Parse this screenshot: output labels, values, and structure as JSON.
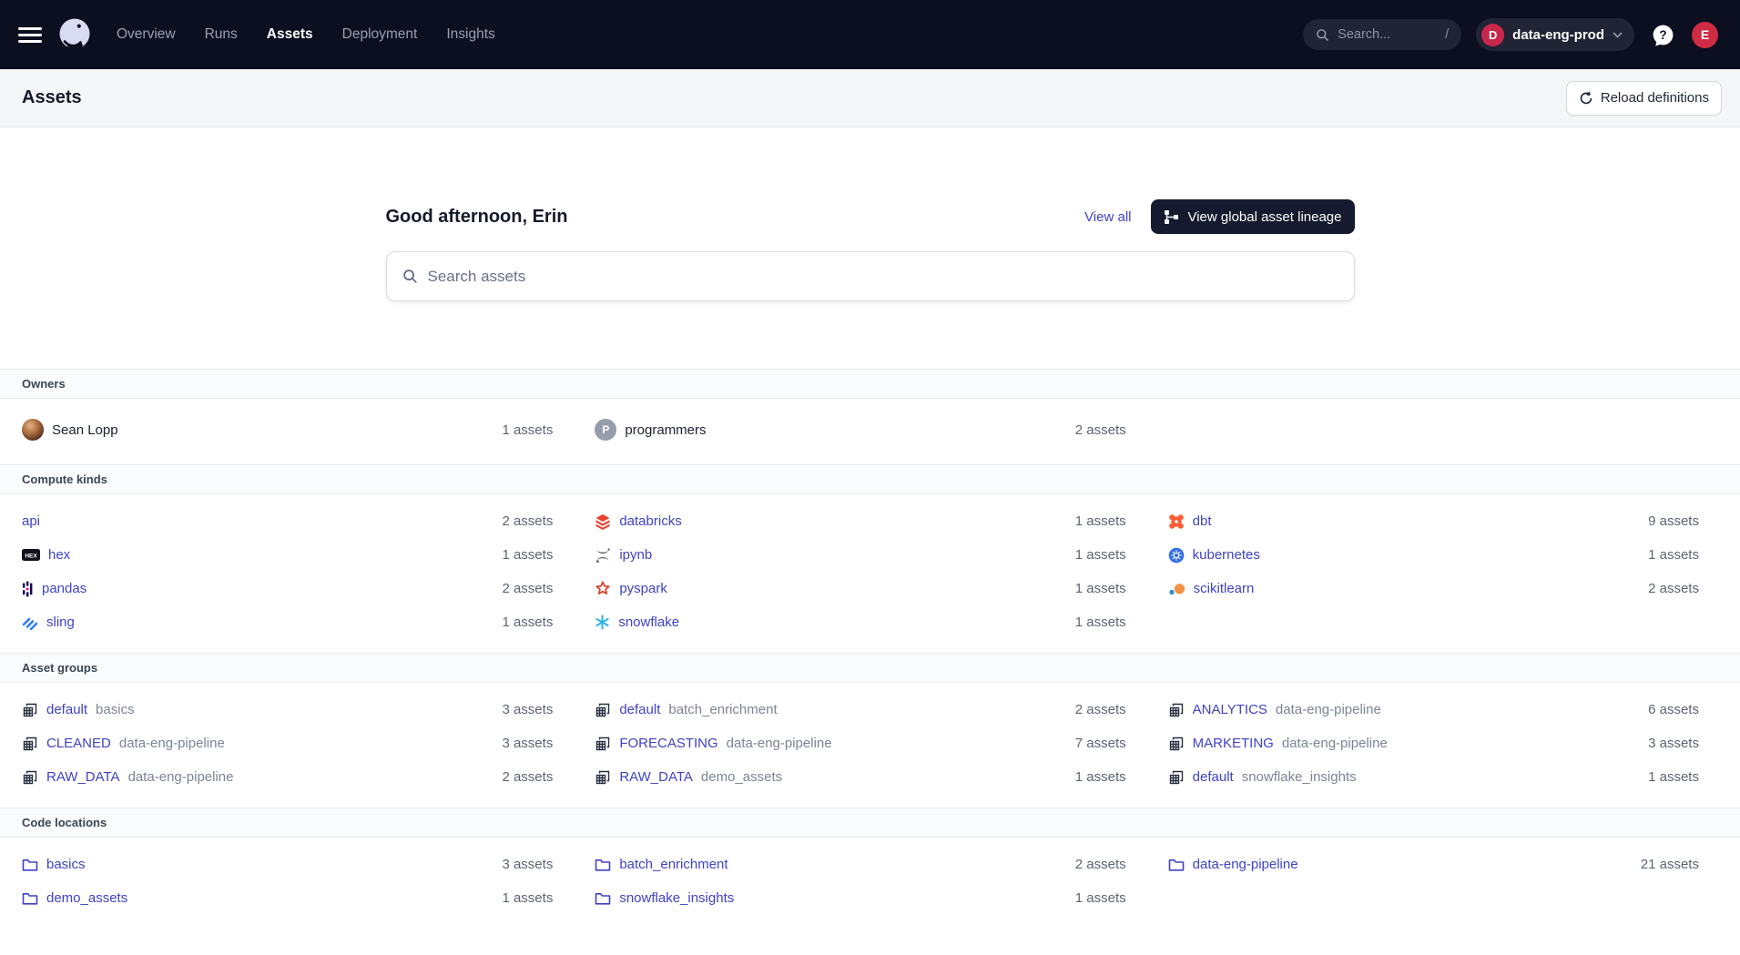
{
  "colors": {
    "nav_bg": "#0c0f20",
    "accent_link": "#3f42c6",
    "badge_red": "#c9274a",
    "avatar_red": "#d02b44",
    "button_dark": "#151a2e",
    "header_bg": "#f5f6f8",
    "band_bg": "#fafbfc"
  },
  "nav": {
    "items": [
      {
        "label": "Overview",
        "active": false
      },
      {
        "label": "Runs",
        "active": false
      },
      {
        "label": "Assets",
        "active": true
      },
      {
        "label": "Deployment",
        "active": false
      },
      {
        "label": "Insights",
        "active": false
      }
    ],
    "search": {
      "placeholder": "Search...",
      "shortcut": "/"
    },
    "deployment": {
      "initial": "D",
      "name": "data-eng-prod"
    },
    "user_initial": "E"
  },
  "page_header": {
    "title": "Assets",
    "reload_button": "Reload definitions"
  },
  "hero": {
    "greeting": "Good afternoon, Erin",
    "view_all": "View all",
    "lineage_button": "View global asset lineage",
    "search_placeholder": "Search assets"
  },
  "sections": [
    {
      "title": "Owners",
      "type": "owners",
      "items": [
        {
          "label": "Sean Lopp",
          "count": "1 assets",
          "avatar": "photo"
        },
        {
          "label": "programmers",
          "count": "2 assets",
          "avatar": "P"
        }
      ]
    },
    {
      "title": "Compute kinds",
      "type": "kinds",
      "items": [
        {
          "label": "api",
          "count": "2 assets",
          "icon": "none"
        },
        {
          "label": "databricks",
          "count": "1 assets",
          "icon": "databricks"
        },
        {
          "label": "dbt",
          "count": "9 assets",
          "icon": "dbt"
        },
        {
          "label": "hex",
          "count": "1 assets",
          "icon": "hex"
        },
        {
          "label": "ipynb",
          "count": "1 assets",
          "icon": "ipynb"
        },
        {
          "label": "kubernetes",
          "count": "1 assets",
          "icon": "kubernetes"
        },
        {
          "label": "pandas",
          "count": "2 assets",
          "icon": "pandas"
        },
        {
          "label": "pyspark",
          "count": "1 assets",
          "icon": "pyspark"
        },
        {
          "label": "scikitlearn",
          "count": "2 assets",
          "icon": "scikitlearn"
        },
        {
          "label": "sling",
          "count": "1 assets",
          "icon": "sling"
        },
        {
          "label": "snowflake",
          "count": "1 assets",
          "icon": "snowflake"
        }
      ]
    },
    {
      "title": "Asset groups",
      "type": "groups",
      "items": [
        {
          "label": "default",
          "sub": "basics",
          "count": "3 assets"
        },
        {
          "label": "default",
          "sub": "batch_enrichment",
          "count": "2 assets"
        },
        {
          "label": "ANALYTICS",
          "sub": "data-eng-pipeline",
          "count": "6 assets"
        },
        {
          "label": "CLEANED",
          "sub": "data-eng-pipeline",
          "count": "3 assets"
        },
        {
          "label": "FORECASTING",
          "sub": "data-eng-pipeline",
          "count": "7 assets"
        },
        {
          "label": "MARKETING",
          "sub": "data-eng-pipeline",
          "count": "3 assets"
        },
        {
          "label": "RAW_DATA",
          "sub": "data-eng-pipeline",
          "count": "2 assets"
        },
        {
          "label": "RAW_DATA",
          "sub": "demo_assets",
          "count": "1 assets"
        },
        {
          "label": "default",
          "sub": "snowflake_insights",
          "count": "1 assets"
        }
      ]
    },
    {
      "title": "Code locations",
      "type": "locations",
      "items": [
        {
          "label": "basics",
          "count": "3 assets"
        },
        {
          "label": "batch_enrichment",
          "count": "2 assets"
        },
        {
          "label": "data-eng-pipeline",
          "count": "21 assets"
        },
        {
          "label": "demo_assets",
          "count": "1 assets"
        },
        {
          "label": "snowflake_insights",
          "count": "1 assets"
        }
      ]
    }
  ]
}
